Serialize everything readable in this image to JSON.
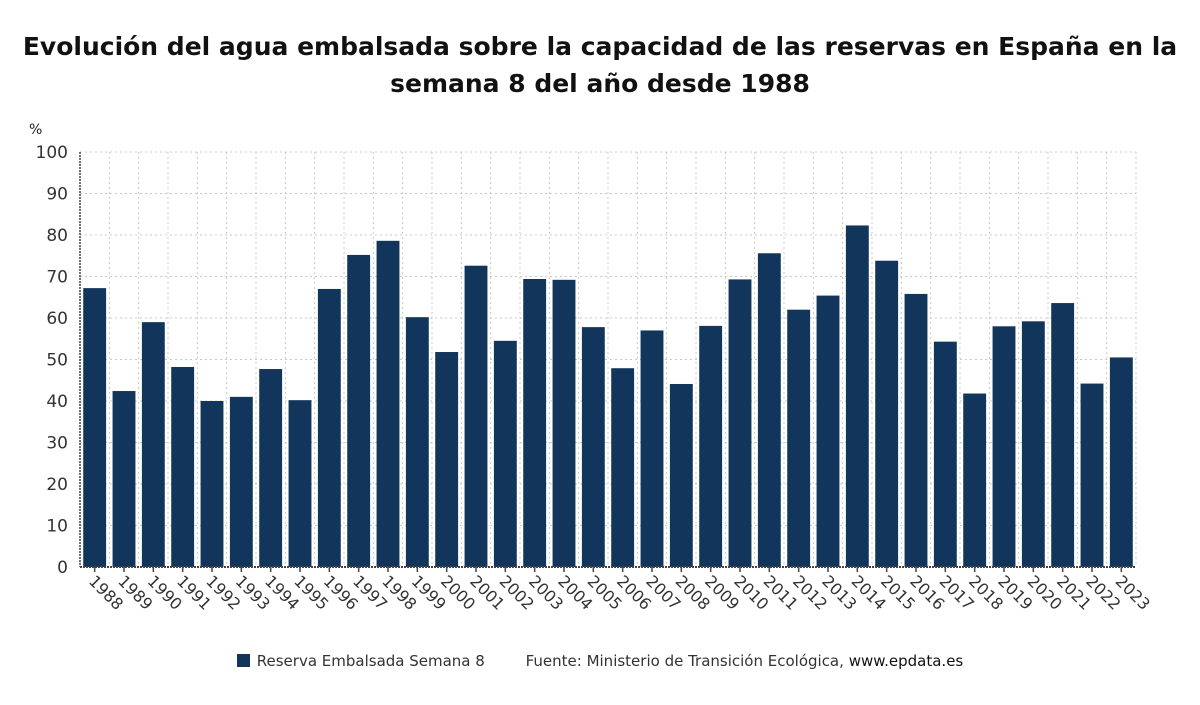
{
  "chart_data": {
    "type": "bar",
    "title": "Evolución del agua embalsada sobre la capacidad de las reservas en España en la semana 8 del año desde 1988",
    "xlabel": "",
    "ylabel": "%",
    "ylim": [
      0,
      100
    ],
    "yticks": [
      0,
      10,
      20,
      30,
      40,
      50,
      60,
      70,
      80,
      90,
      100
    ],
    "grid": true,
    "legend_position": "bottom",
    "categories": [
      "1988",
      "1989",
      "1990",
      "1991",
      "1992",
      "1993",
      "1994",
      "1995",
      "1996",
      "1997",
      "1998",
      "1999",
      "2000",
      "2001",
      "2002",
      "2003",
      "2004",
      "2005",
      "2006",
      "2007",
      "2008",
      "2009",
      "2010",
      "2011",
      "2012",
      "2013",
      "2014",
      "2015",
      "2016",
      "2017",
      "2018",
      "2019",
      "2020",
      "2021",
      "2022",
      "2023"
    ],
    "series": [
      {
        "name": "Reserva Embalsada Semana 8",
        "color": "#12355b",
        "values": [
          67.2,
          42.4,
          59.0,
          48.2,
          40.0,
          41.0,
          47.7,
          40.2,
          67.0,
          75.2,
          78.6,
          60.2,
          51.8,
          72.6,
          54.5,
          69.4,
          69.2,
          57.8,
          47.9,
          57.0,
          44.1,
          58.1,
          69.3,
          75.6,
          62.0,
          65.4,
          82.3,
          73.8,
          65.8,
          54.3,
          41.8,
          58.0,
          59.2,
          63.6,
          44.2,
          50.5
        ]
      }
    ],
    "source": "Fuente: Ministerio de Transición Ecológica,",
    "source_url": "www.epdata.es"
  }
}
